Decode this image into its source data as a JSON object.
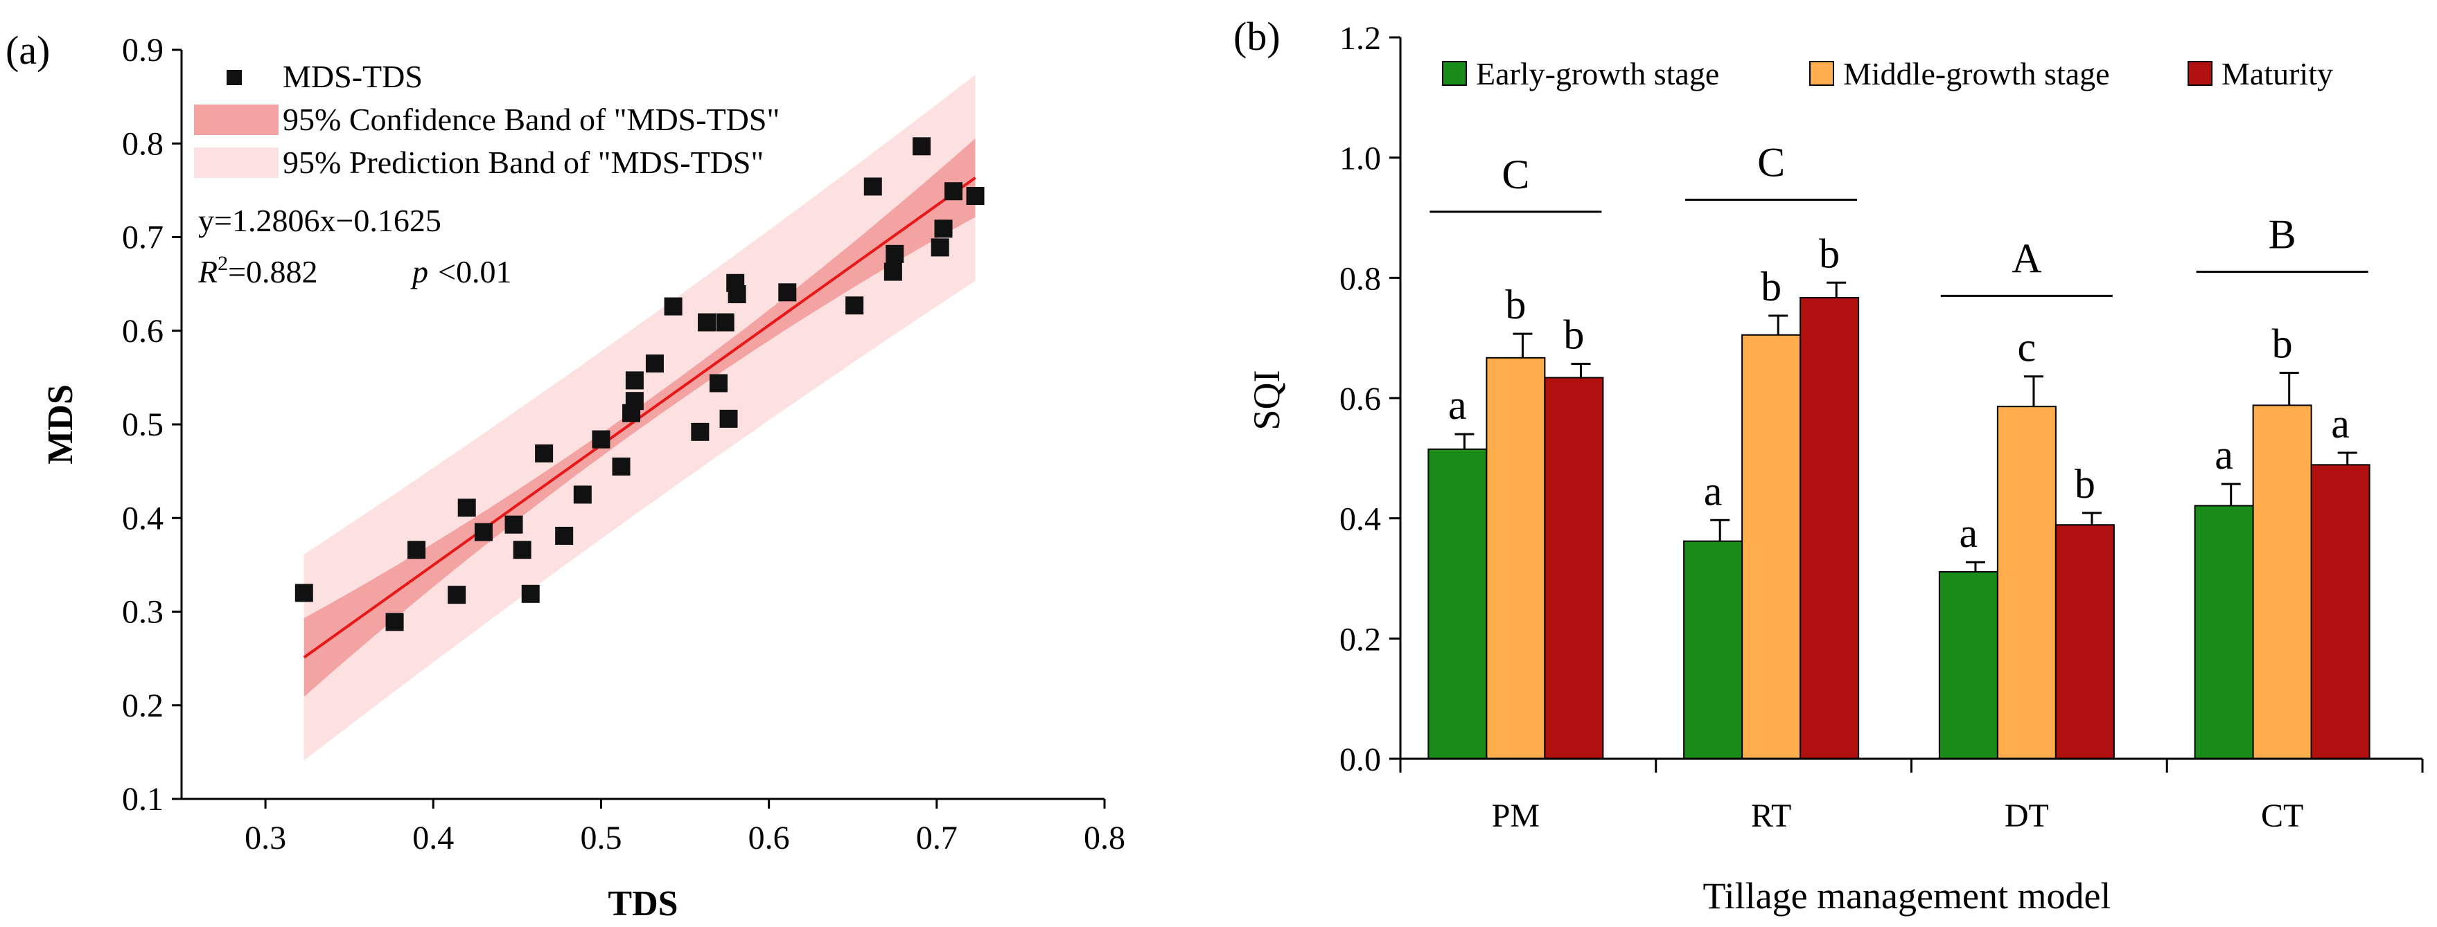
{
  "panels": {
    "a": {
      "panel_label": "(a)",
      "xlabel": "TDS",
      "ylabel": "MDS",
      "legend": {
        "points": "MDS-TDS",
        "confidence": "95% Confidence Band of \"MDS-TDS\"",
        "prediction": "95% Prediction Band of \"MDS-TDS\""
      },
      "equation": "y=1.2806x−0.1625",
      "r2_prefix": "R",
      "r2_sup": "2",
      "r2_value": "=0.882",
      "p_label": "p",
      "p_value": "<0.01",
      "xticks": [
        "0.3",
        "0.4",
        "0.5",
        "0.6",
        "0.7",
        "0.8"
      ],
      "yticks": [
        "0.1",
        "0.2",
        "0.3",
        "0.4",
        "0.5",
        "0.6",
        "0.7",
        "0.8",
        "0.9"
      ]
    },
    "b": {
      "panel_label": "(b)",
      "xlabel": "Tillage management model",
      "ylabel": "SQI",
      "legend": [
        "Early-growth stage",
        "Middle-growth stage",
        "Maturity"
      ],
      "yticks": [
        "0.0",
        "0.2",
        "0.4",
        "0.6",
        "0.8",
        "1.0",
        "1.2"
      ],
      "categories": [
        "PM",
        "RT",
        "DT",
        "CT"
      ]
    }
  },
  "colors": {
    "regression_line": "#e81818",
    "confidence_band": "#f4a3a3",
    "prediction_band": "#fde1e1",
    "point": "#111111",
    "early": "#1a8c1a",
    "middle": "#ffad4d",
    "maturity": "#b01010"
  },
  "chart_data": [
    {
      "type": "scatter",
      "xlim": [
        0.25,
        0.8
      ],
      "ylim": [
        0.1,
        0.9
      ],
      "grid": false,
      "legend_position": "top-left",
      "fit": {
        "slope": 1.2806,
        "intercept": -0.1625,
        "r2": 0.882,
        "x_range": [
          0.323,
          0.723
        ]
      },
      "bands": {
        "confidence_halfwidth_ends": 0.042,
        "confidence_halfwidth_center": 0.012,
        "prediction_halfwidth_ends": 0.11,
        "prediction_halfwidth_center": 0.1,
        "x_center": 0.523
      },
      "series": [
        {
          "name": "MDS-TDS",
          "points": [
            [
              0.323,
              0.32
            ],
            [
              0.377,
              0.289
            ],
            [
              0.39,
              0.366
            ],
            [
              0.414,
              0.318
            ],
            [
              0.42,
              0.411
            ],
            [
              0.43,
              0.385
            ],
            [
              0.448,
              0.393
            ],
            [
              0.453,
              0.366
            ],
            [
              0.458,
              0.319
            ],
            [
              0.466,
              0.469
            ],
            [
              0.478,
              0.381
            ],
            [
              0.489,
              0.425
            ],
            [
              0.5,
              0.484
            ],
            [
              0.512,
              0.455
            ],
            [
              0.518,
              0.512
            ],
            [
              0.52,
              0.525
            ],
            [
              0.52,
              0.547
            ],
            [
              0.532,
              0.565
            ],
            [
              0.543,
              0.626
            ],
            [
              0.559,
              0.492
            ],
            [
              0.563,
              0.609
            ],
            [
              0.57,
              0.544
            ],
            [
              0.574,
              0.609
            ],
            [
              0.576,
              0.506
            ],
            [
              0.58,
              0.651
            ],
            [
              0.581,
              0.639
            ],
            [
              0.611,
              0.641
            ],
            [
              0.651,
              0.627
            ],
            [
              0.662,
              0.754
            ],
            [
              0.674,
              0.663
            ],
            [
              0.675,
              0.682
            ],
            [
              0.691,
              0.797
            ],
            [
              0.702,
              0.689
            ],
            [
              0.704,
              0.709
            ],
            [
              0.71,
              0.749
            ],
            [
              0.723,
              0.744
            ]
          ]
        }
      ]
    },
    {
      "type": "bar",
      "ylim": [
        0,
        1.2
      ],
      "grid": false,
      "legend_position": "top",
      "categories": [
        "PM",
        "RT",
        "DT",
        "CT"
      ],
      "series": [
        {
          "name": "Early-growth stage",
          "values": [
            0.515,
            0.362,
            0.311,
            0.421
          ],
          "errors": [
            0.025,
            0.035,
            0.016,
            0.036
          ],
          "letters": [
            "a",
            "a",
            "a",
            "a"
          ]
        },
        {
          "name": "Middle-growth stage",
          "values": [
            0.667,
            0.705,
            0.586,
            0.588
          ],
          "errors": [
            0.04,
            0.032,
            0.05,
            0.054
          ],
          "letters": [
            "b",
            "b",
            "c",
            "b"
          ]
        },
        {
          "name": "Maturity",
          "values": [
            0.634,
            0.767,
            0.389,
            0.489
          ],
          "errors": [
            0.023,
            0.025,
            0.02,
            0.02
          ],
          "letters": [
            "b",
            "b",
            "b",
            "a"
          ]
        }
      ],
      "group_letters": [
        "C",
        "C",
        "A",
        "B"
      ],
      "group_letter_y": [
        0.91,
        0.93,
        0.77,
        0.81
      ]
    }
  ]
}
